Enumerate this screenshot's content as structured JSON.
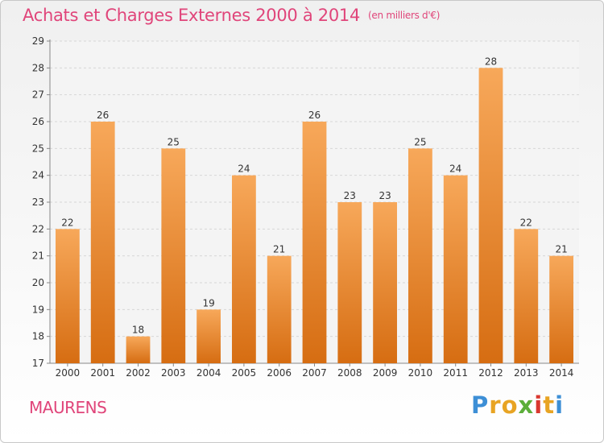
{
  "title": "Achats et Charges Externes 2000 à 2014",
  "subtitle": "(en milliers d'€)",
  "place": "MAURENS",
  "brand": {
    "letters": [
      "P",
      "r",
      "o",
      "x",
      "i",
      "t",
      "i"
    ],
    "colors": [
      "#3d8fd6",
      "#e8a423",
      "#e8a423",
      "#5cae3a",
      "#d9372f",
      "#e8a423",
      "#3d8fd6"
    ]
  },
  "colors": {
    "title": "#e0457a",
    "bar_light": "#f7a85a",
    "bar_dark": "#d66d12"
  },
  "chart_data": {
    "type": "bar",
    "title": "Achats et Charges Externes 2000 à 2014",
    "subtitle": "(en milliers d'€)",
    "xlabel": "",
    "ylabel": "",
    "categories": [
      "2000",
      "2001",
      "2002",
      "2003",
      "2004",
      "2005",
      "2006",
      "2007",
      "2008",
      "2009",
      "2010",
      "2011",
      "2012",
      "2013",
      "2014"
    ],
    "values": [
      22,
      26,
      18,
      25,
      19,
      24,
      21,
      26,
      23,
      23,
      25,
      24,
      28,
      22,
      21
    ],
    "ylim": [
      17,
      29
    ],
    "yticks": [
      17,
      18,
      19,
      20,
      21,
      22,
      23,
      24,
      25,
      26,
      27,
      28,
      29
    ],
    "grid": "horizontal",
    "legend": "none"
  }
}
